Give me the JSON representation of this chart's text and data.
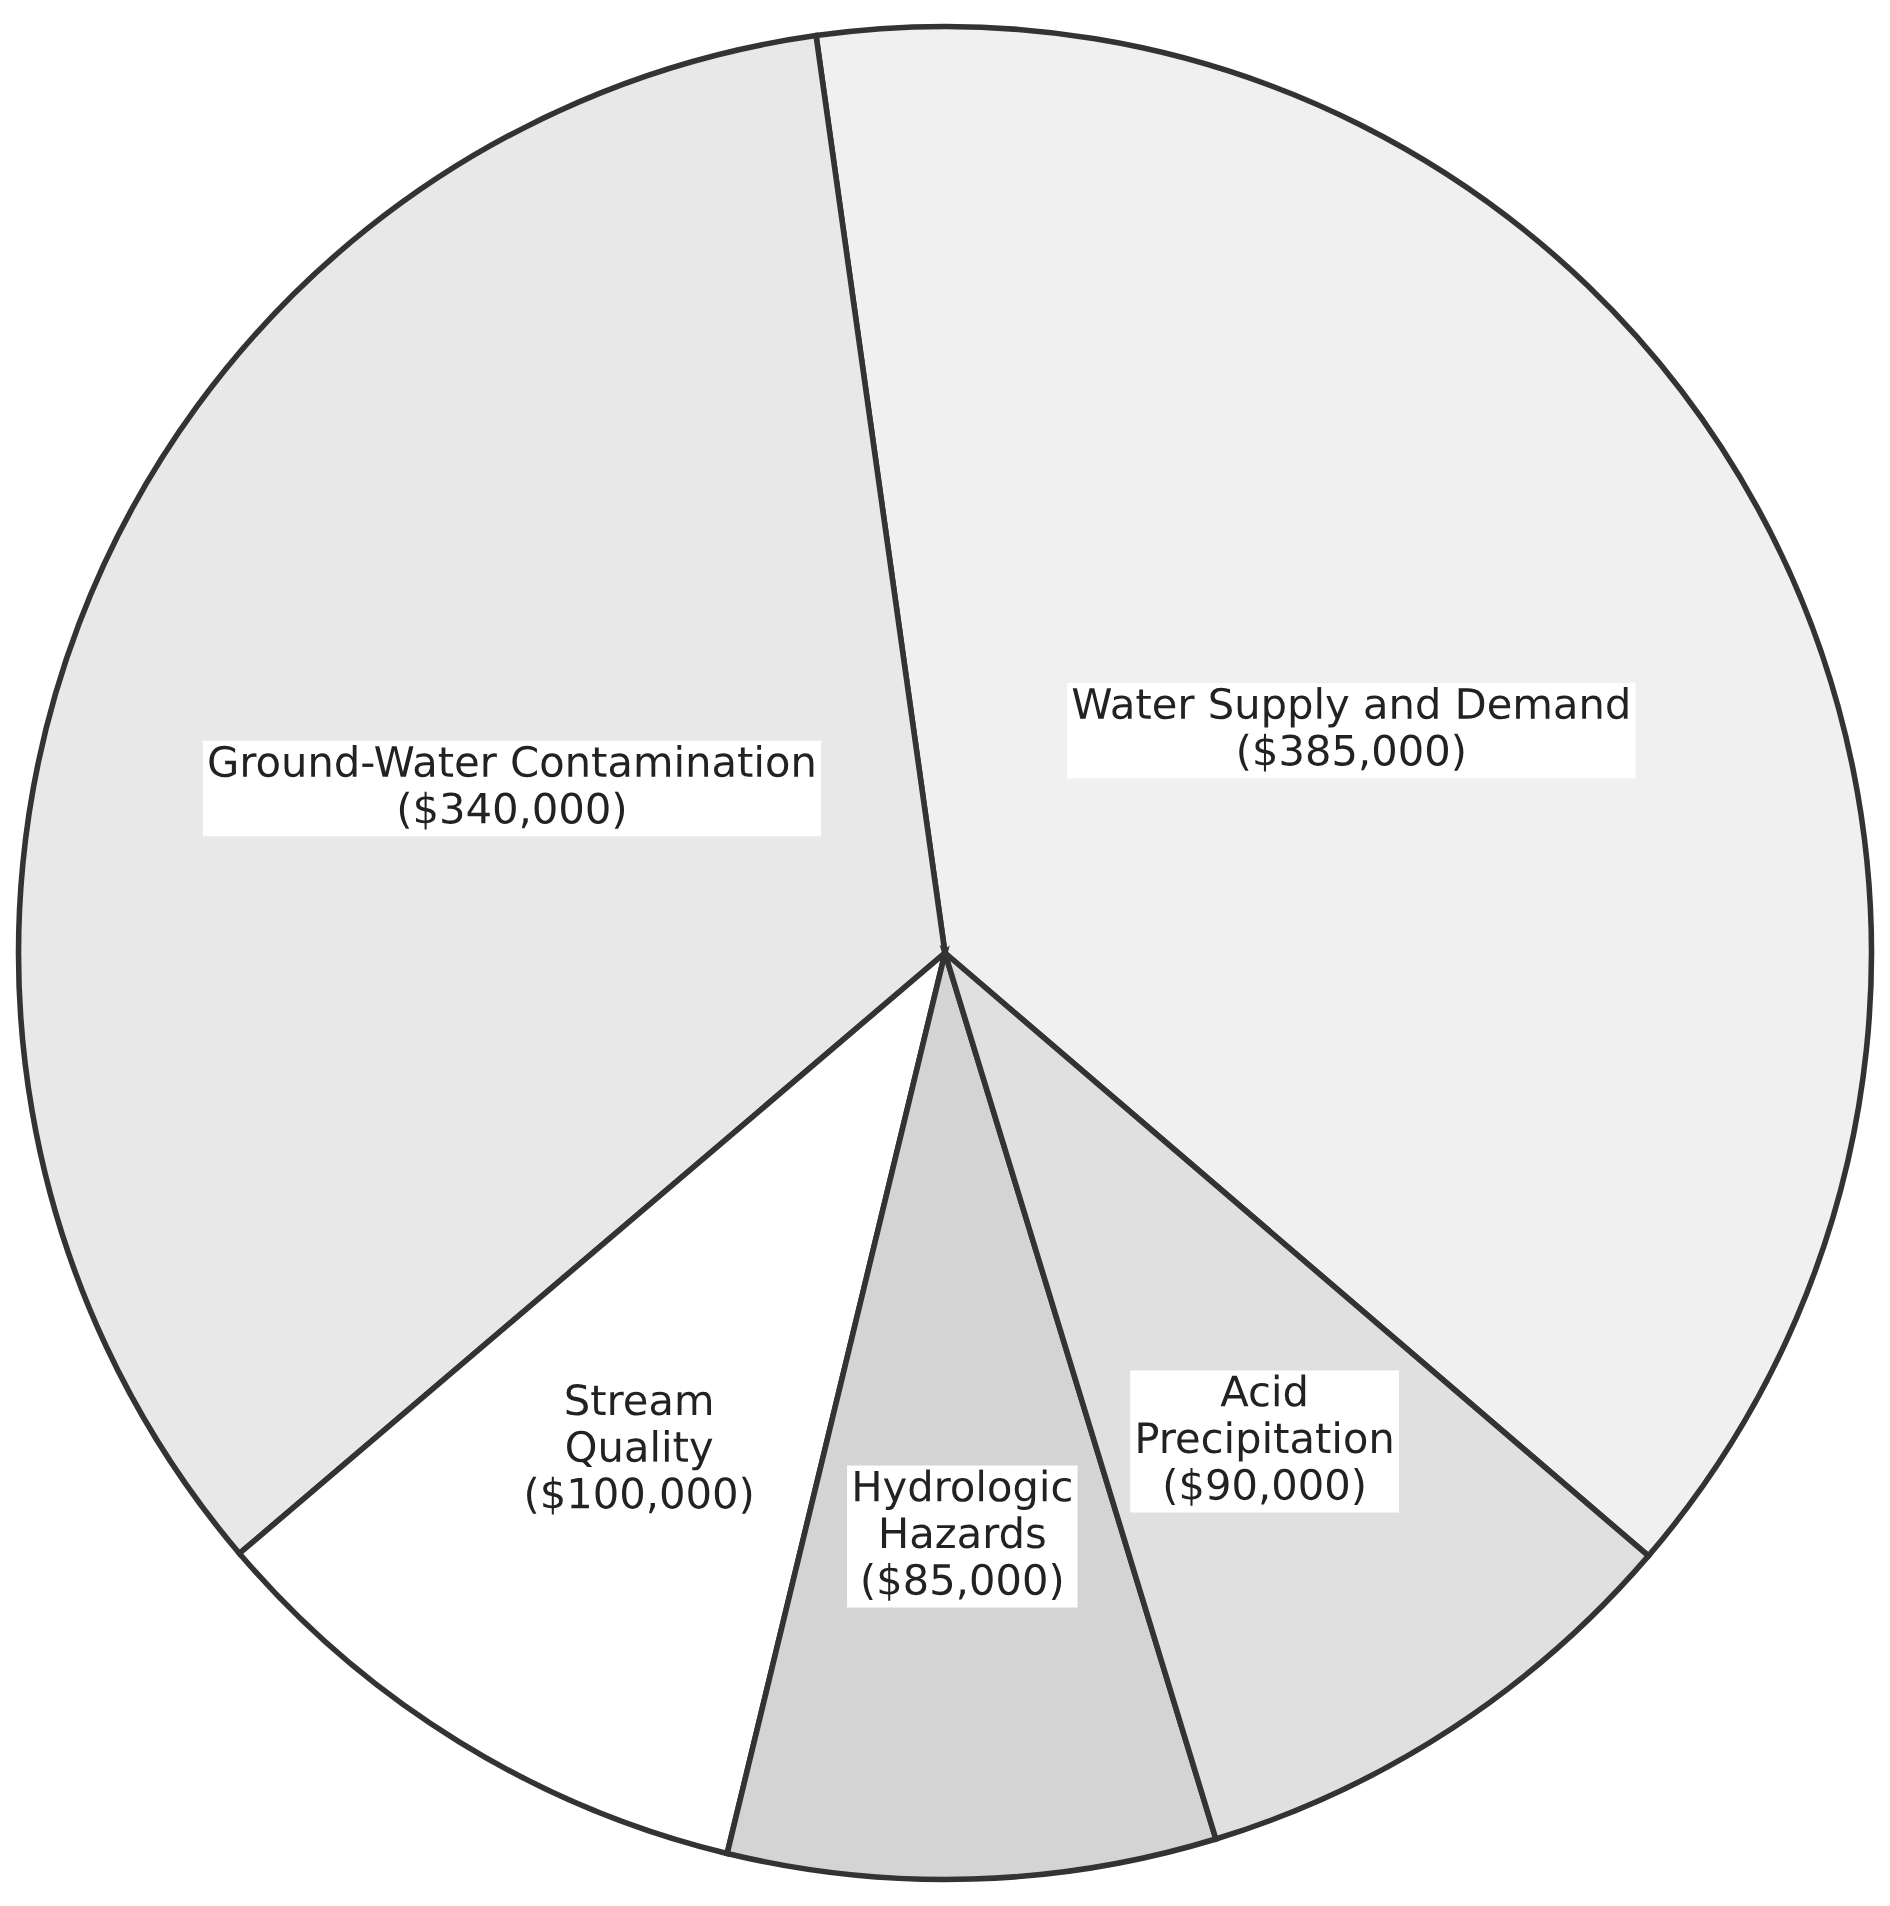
{
  "chart_data": {
    "type": "pie",
    "categories": [
      "Water Supply and Demand",
      "Ground-Water Contamination",
      "Stream\nQuality",
      "Hydrologic\nHazards",
      "Acid\nPrecipitation"
    ],
    "values": [
      385000,
      340000,
      100000,
      85000,
      90000
    ],
    "value_labels": [
      "($385,000)",
      "($340,000)",
      "($100,000)",
      "($85,000)",
      "($90,000)"
    ],
    "colors": [
      "#f0f0f0",
      "#e8e8e8",
      "#ffffff",
      "#d4d4d4",
      "#e0e0e0"
    ]
  }
}
